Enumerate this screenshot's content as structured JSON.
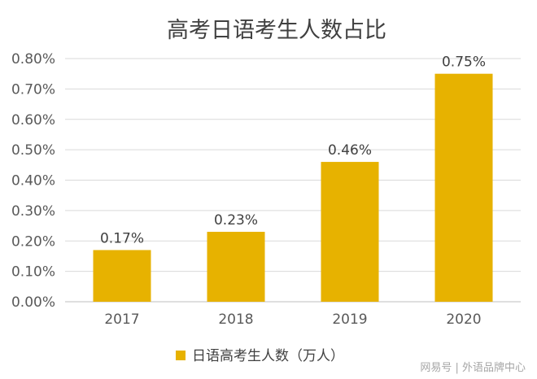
{
  "chart_data": {
    "type": "bar",
    "title": "高考日语考生人数占比",
    "categories": [
      "2017",
      "2018",
      "2019",
      "2020"
    ],
    "series": [
      {
        "name": "日语高考生人数（万人）",
        "values": [
          0.17,
          0.23,
          0.46,
          0.75
        ],
        "data_labels": [
          "0.17%",
          "0.23%",
          "0.46%",
          "0.75%"
        ],
        "color": "#e7b200"
      }
    ],
    "ylim": [
      0,
      0.8
    ],
    "yticks": [
      0,
      0.1,
      0.2,
      0.3,
      0.4,
      0.5,
      0.6,
      0.7,
      0.8
    ],
    "ytick_labels": [
      "0.00%",
      "0.10%",
      "0.20%",
      "0.30%",
      "0.40%",
      "0.50%",
      "0.60%",
      "0.70%",
      "0.80%"
    ],
    "xlabel": "",
    "ylabel": "",
    "grid": true,
    "legend": "bottom"
  },
  "colors": {
    "bar": "#e7b200",
    "grid": "#d9d9d9",
    "axis": "#bfbfbf"
  },
  "watermark": "网易号 | 外语品牌中心"
}
